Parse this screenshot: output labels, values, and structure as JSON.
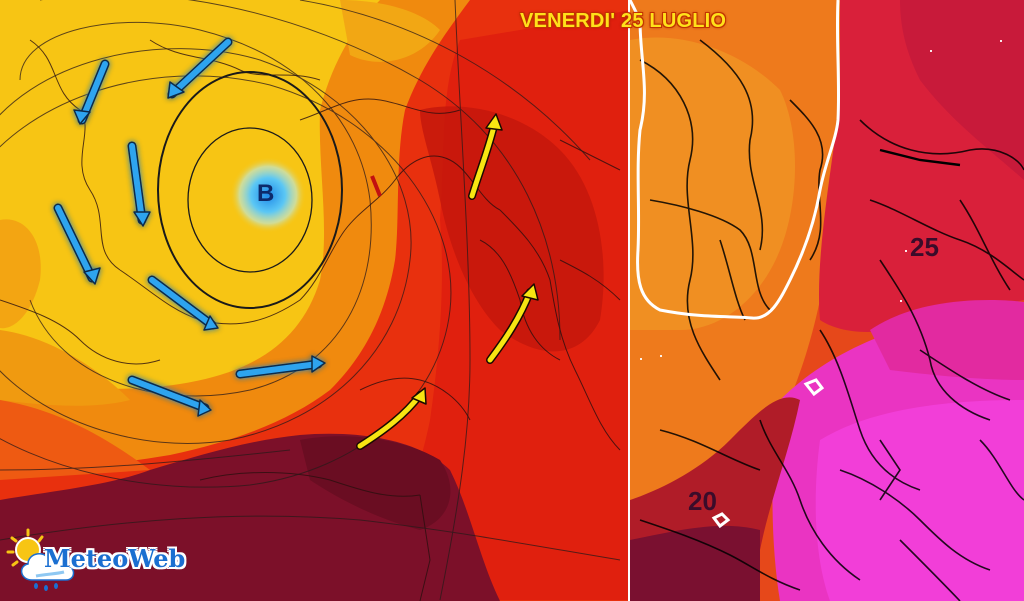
{
  "map": {
    "date_label": "VENERDI' 25 LUGLIO",
    "low_pressure_label": "B",
    "isotherm_labels": [
      "25",
      "20"
    ],
    "brand": "MeteoWeb",
    "colors": {
      "yellow": "#f7c514",
      "orange": "#f08a0e",
      "red": "#e42a10",
      "dark_red": "#7c1029",
      "magenta": "#f231d8",
      "cold_arrow": "#1e8ce0",
      "warm_arrow": "#f7e512"
    }
  }
}
